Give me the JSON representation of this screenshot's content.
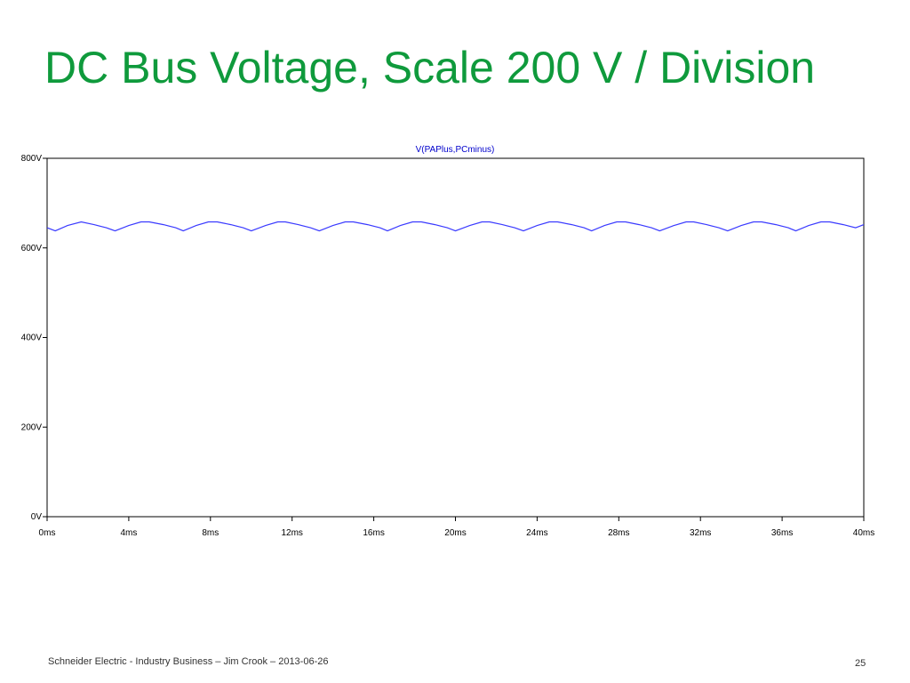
{
  "slide": {
    "title": "DC Bus Voltage, Scale 200 V / Division",
    "footer": "Schneider Electric - Industry Business – Jim Crook – 2013-06-26",
    "page_number": "25"
  },
  "colors": {
    "title": "#0f9a3c",
    "trace": "#3a3aff",
    "series_label": "#0000cc"
  },
  "chart_data": {
    "type": "line",
    "title": "",
    "xlabel": "",
    "ylabel": "",
    "xlim": [
      0,
      40
    ],
    "ylim": [
      0,
      800
    ],
    "x_unit": "ms",
    "y_unit": "V",
    "x_tick_labels": [
      "0ms",
      "4ms",
      "8ms",
      "12ms",
      "16ms",
      "20ms",
      "24ms",
      "28ms",
      "32ms",
      "36ms",
      "40ms"
    ],
    "y_tick_labels": [
      "0V",
      "200V",
      "400V",
      "600V",
      "800V"
    ],
    "grid": false,
    "series": [
      {
        "name": "V(PAPlus,PCminus)",
        "x": [
          0.0,
          0.4,
          1.0,
          1.67,
          2.3,
          2.9,
          3.33,
          4.0,
          4.6,
          5.0,
          5.7,
          6.3,
          6.67,
          7.3,
          7.9,
          8.33,
          9.0,
          9.6,
          10.0,
          10.7,
          11.3,
          11.67,
          12.3,
          12.9,
          13.33,
          14.0,
          14.6,
          15.0,
          15.7,
          16.3,
          16.67,
          17.3,
          17.9,
          18.33,
          19.0,
          19.6,
          20.0,
          20.7,
          21.3,
          21.67,
          22.3,
          22.9,
          23.33,
          24.0,
          24.6,
          25.0,
          25.7,
          26.3,
          26.67,
          27.3,
          27.9,
          28.33,
          29.0,
          29.6,
          30.0,
          30.7,
          31.3,
          31.67,
          32.3,
          32.9,
          33.33,
          34.0,
          34.6,
          35.0,
          35.7,
          36.3,
          36.67,
          37.3,
          37.9,
          38.33,
          39.0,
          39.6,
          40.0
        ],
        "y": [
          645,
          638,
          650,
          658,
          652,
          645,
          638,
          650,
          658,
          658,
          652,
          645,
          638,
          650,
          658,
          658,
          652,
          645,
          638,
          650,
          658,
          658,
          652,
          645,
          638,
          650,
          658,
          658,
          652,
          645,
          638,
          650,
          658,
          658,
          652,
          645,
          638,
          650,
          658,
          658,
          652,
          645,
          638,
          650,
          658,
          658,
          652,
          645,
          638,
          650,
          658,
          658,
          652,
          645,
          638,
          650,
          658,
          658,
          652,
          645,
          638,
          650,
          658,
          658,
          652,
          645,
          638,
          650,
          658,
          658,
          652,
          645,
          652
        ]
      }
    ]
  }
}
